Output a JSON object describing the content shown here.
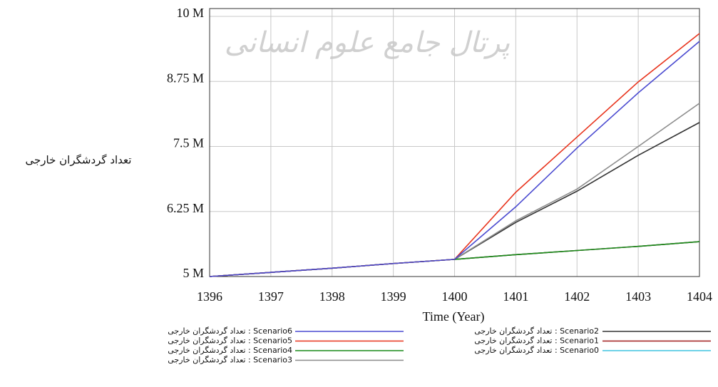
{
  "chart_data": {
    "type": "line",
    "watermark": "پرتال جامع علوم انسانی",
    "ylabel": "تعداد گردشگران خارجی",
    "xlabel": "Time (Year)",
    "x": [
      1396,
      1397,
      1398,
      1399,
      1400,
      1401,
      1402,
      1403,
      1404
    ],
    "xlim": [
      1396,
      1404
    ],
    "xticks": [
      1396,
      1397,
      1398,
      1399,
      1400,
      1401,
      1402,
      1403,
      1404
    ],
    "ylim": [
      5,
      10.15
    ],
    "yticks": [
      {
        "value": 5,
        "label": "5 M"
      },
      {
        "value": 6.25,
        "label": "6.25 M"
      },
      {
        "value": 7.5,
        "label": "7.5 M"
      },
      {
        "value": 8.75,
        "label": "8.75 M"
      },
      {
        "value": 10,
        "label": "10 M"
      }
    ],
    "grid": true,
    "series": [
      {
        "name": "تعداد گردشگران خارجی : Scenario6",
        "color": "#4a4ad0",
        "values": [
          5.0,
          5.08,
          5.16,
          5.25,
          5.33,
          6.34,
          7.47,
          8.53,
          9.52
        ]
      },
      {
        "name": "تعداد گردشگران خارجی : Scenario5",
        "color": "#e8331c",
        "values": [
          5.0,
          5.08,
          5.16,
          5.25,
          5.33,
          6.62,
          7.68,
          8.74,
          9.67
        ]
      },
      {
        "name": "تعداد گردشگران خارجی : Scenario4",
        "color": "#1a8c1a",
        "values": [
          5.0,
          5.08,
          5.16,
          5.25,
          5.33,
          5.42,
          5.5,
          5.58,
          5.67
        ]
      },
      {
        "name": "تعداد گردشگران خارجی : Scenario3",
        "color": "#8c8c8c",
        "values": [
          5.0,
          5.08,
          5.16,
          5.25,
          5.33,
          6.07,
          6.68,
          7.5,
          8.33
        ]
      },
      {
        "name": "تعداد گردشگران خارجی : Scenario2",
        "color": "#333333",
        "values": [
          5.0,
          5.08,
          5.16,
          5.25,
          5.33,
          6.04,
          6.64,
          7.33,
          7.96
        ]
      },
      {
        "name": "تعداد گردشگران خارجی : Scenario1",
        "color": "#a01c1c",
        "values": [
          5.0,
          5.08,
          5.16,
          5.25,
          5.33,
          5.42,
          5.5,
          5.58,
          5.67
        ]
      },
      {
        "name": "تعداد گردشگران خارجی : Scenario0",
        "color": "#3fc4e0",
        "values": [
          5.0,
          5.08,
          5.16,
          5.25,
          5.33,
          5.42,
          5.5,
          5.58,
          5.67
        ]
      }
    ]
  }
}
